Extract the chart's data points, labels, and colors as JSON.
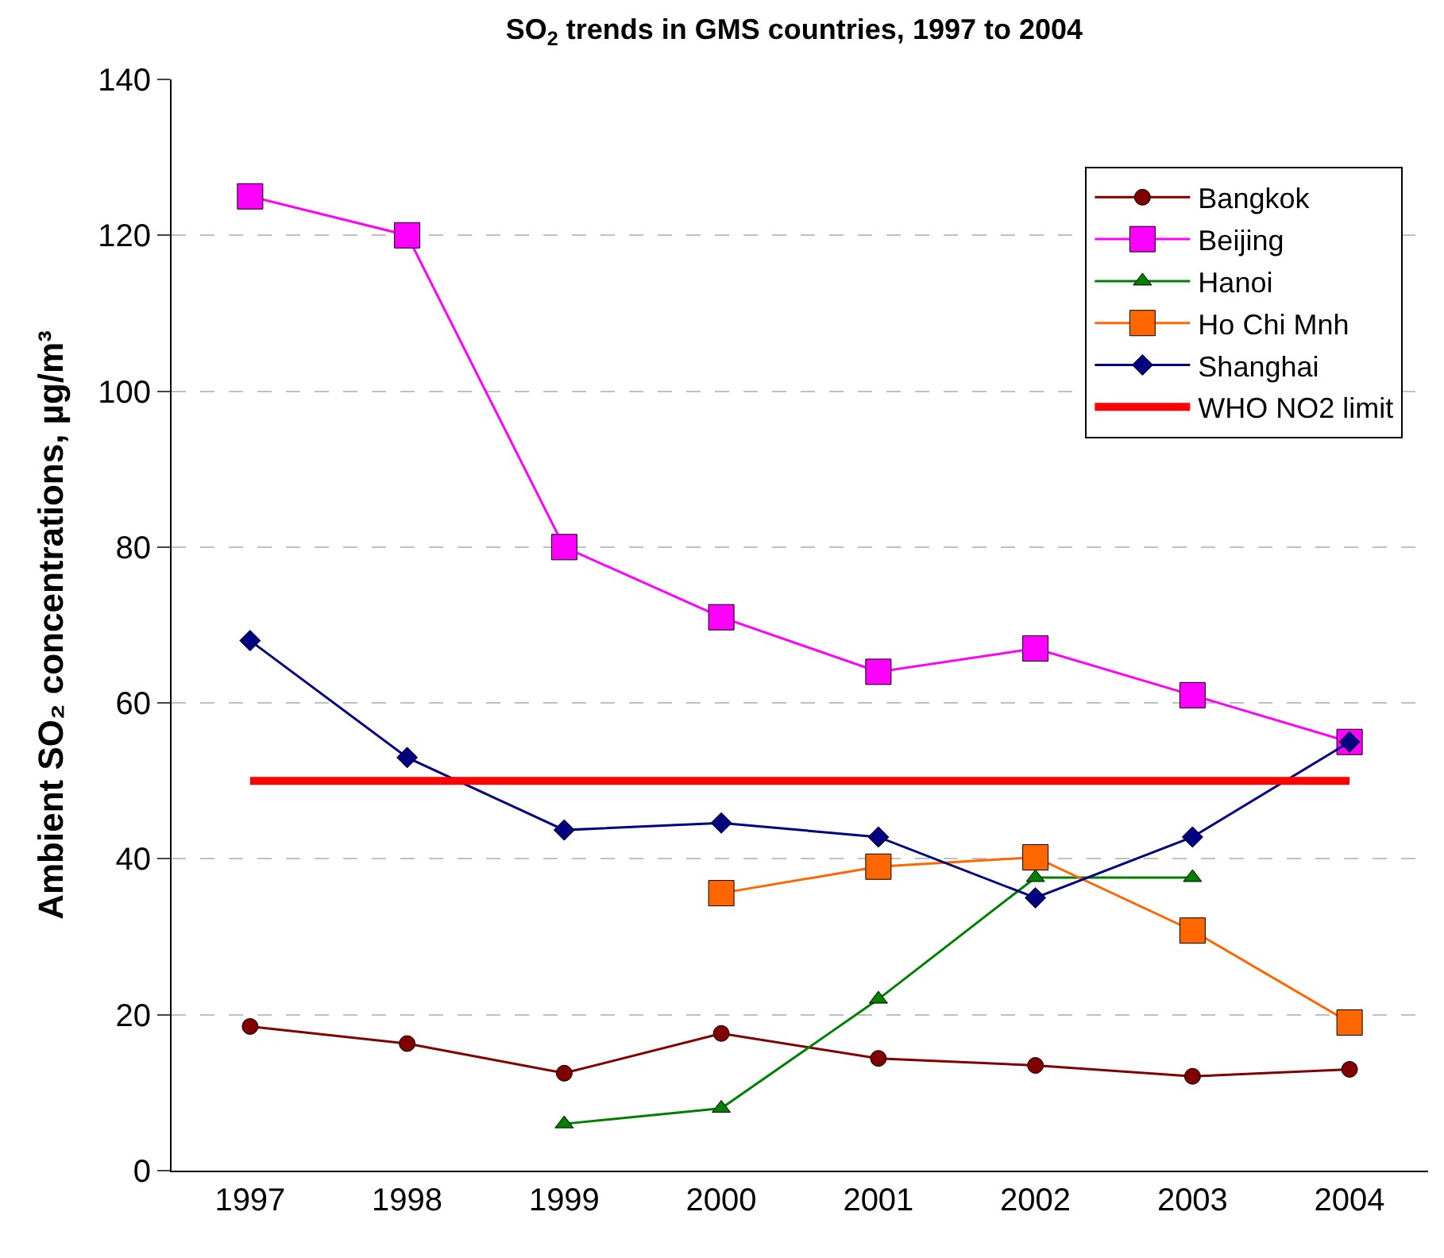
{
  "chart_data": {
    "type": "line",
    "title": "SO$_{2}$ trends in GMS countries, 1997 to 2004",
    "ylabel": "Ambient SO₂ concentrations, µg/m³",
    "categories": [
      "1997",
      "1998",
      "1999",
      "2000",
      "2001",
      "2002",
      "2003",
      "2004"
    ],
    "series": [
      {
        "name": "Bangkok",
        "color": "#800000",
        "marker": "circle",
        "values": [
          18.5,
          16.3,
          12.5,
          17.6,
          14.4,
          13.5,
          12.1,
          13.0
        ]
      },
      {
        "name": "Beijing",
        "color": "#ff00ff",
        "marker": "square",
        "values": [
          125,
          120,
          80,
          71,
          64,
          67,
          61,
          55
        ]
      },
      {
        "name": "Hanoi",
        "color": "#008000",
        "marker": "triangle",
        "values": [
          null,
          null,
          6,
          8,
          22,
          37.6,
          37.6,
          null
        ]
      },
      {
        "name": "Ho Chi Mnh",
        "color": "#ff6600",
        "marker": "square",
        "values": [
          null,
          null,
          null,
          35.6,
          39,
          40.2,
          30.8,
          19
        ]
      },
      {
        "name": "Shanghai",
        "color": "#000080",
        "marker": "diamond",
        "values": [
          68,
          53,
          43.7,
          44.6,
          42.8,
          35,
          42.8,
          55
        ]
      },
      {
        "name": "WHO NO2 limit",
        "color": "#ff0000",
        "marker": "none",
        "values": [
          50,
          50,
          50,
          50,
          50,
          50,
          50,
          50
        ]
      }
    ],
    "ylim": [
      0,
      140
    ],
    "yticks": [
      0,
      20,
      40,
      60,
      80,
      100,
      120,
      140
    ],
    "grid": "y",
    "legend": "top right",
    "line_style": "solid"
  }
}
